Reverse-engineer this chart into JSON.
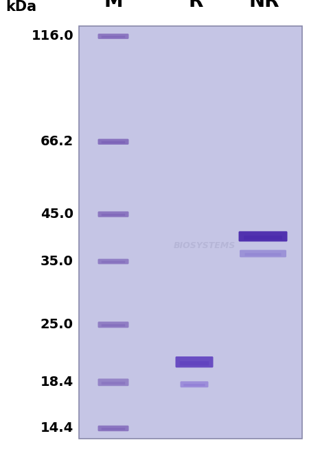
{
  "fig_width": 4.5,
  "fig_height": 6.58,
  "dpi": 100,
  "gel_bg_color": "#c5c5e5",
  "outer_bg_color": "#ffffff",
  "gel_frame_color": "#8888aa",
  "kda_label": "kDa",
  "column_labels": [
    "M",
    "R",
    "NR"
  ],
  "mw_labels": [
    "116.0",
    "66.2",
    "45.0",
    "35.0",
    "25.0",
    "18.4",
    "14.4"
  ],
  "mw_values": [
    116.0,
    66.2,
    45.0,
    35.0,
    25.0,
    18.4,
    14.4
  ],
  "watermark_text": "BIOSYSTEMS",
  "watermark_color": "#aaaacc",
  "ladder_band_color": "#6644aa",
  "sample_band_color_dark": "#4422aa",
  "sample_band_color_light": "#7766bb"
}
